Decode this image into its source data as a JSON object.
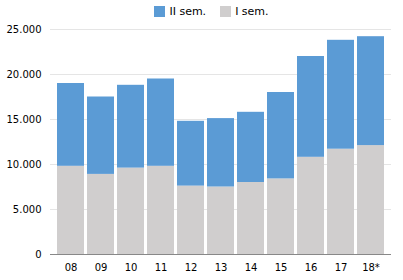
{
  "chart_data": {
    "type": "bar",
    "stacked": true,
    "categories": [
      "08",
      "09",
      "10",
      "11",
      "12",
      "13",
      "14",
      "15",
      "16",
      "17",
      "18*"
    ],
    "series": [
      {
        "name": "I sem.",
        "color": "#d0cece",
        "values": [
          9800,
          8900,
          9600,
          9800,
          7600,
          7500,
          8000,
          8400,
          10800,
          11700,
          12100
        ]
      },
      {
        "name": "II sem.",
        "color": "#5b9bd5",
        "values": [
          9200,
          8600,
          9200,
          9700,
          7200,
          7600,
          7800,
          9600,
          11200,
          12100,
          12100
        ]
      }
    ],
    "ylim": [
      0,
      25000
    ],
    "yticks": [
      0,
      {
        "value": 5000,
        "label": "5.000"
      },
      {
        "value": 10000,
        "label": "10.000"
      },
      {
        "value": 15000,
        "label": "15.000"
      },
      {
        "value": 20000,
        "label": "20.000"
      },
      {
        "value": 25000,
        "label": "25.000"
      }
    ],
    "grid": true,
    "legend": "upper center"
  }
}
